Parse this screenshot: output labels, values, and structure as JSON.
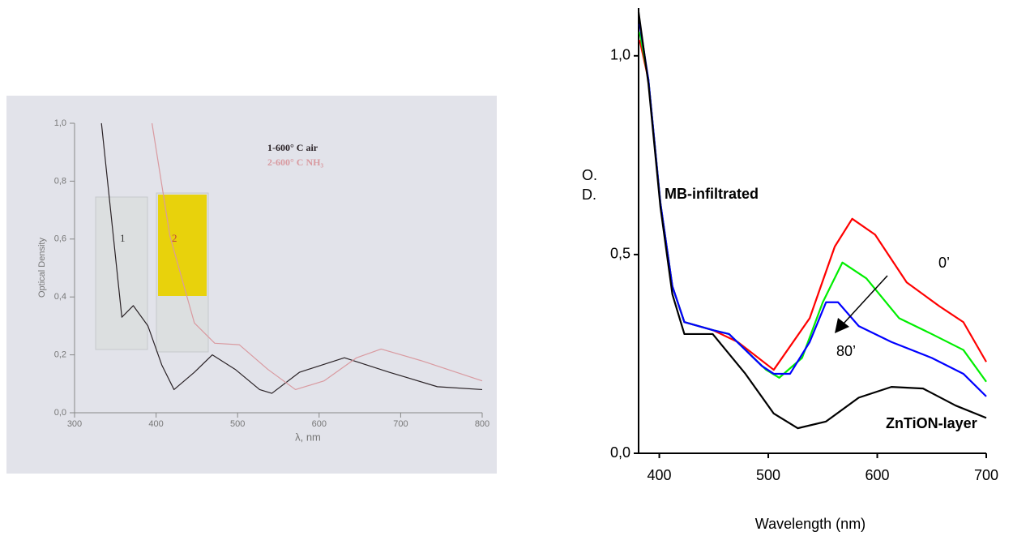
{
  "chart_data": [
    {
      "type": "line",
      "y_label": "Optical Density",
      "x_label": "λ, nm",
      "xlim": [
        300,
        800
      ],
      "xticks": [
        300,
        400,
        500,
        600,
        700,
        800
      ],
      "ylim": [
        0,
        1.0
      ],
      "yticks": [
        {
          "value": 0,
          "label": "0,0"
        },
        {
          "value": 0.2,
          "label": "0,2"
        },
        {
          "value": 0.4,
          "label": "0,4"
        },
        {
          "value": 0.6,
          "label": "0,6"
        },
        {
          "value": 0.8,
          "label": "0,8"
        },
        {
          "value": 1.0,
          "label": "1,0"
        }
      ],
      "legend": "top-right",
      "annotations": [
        "1",
        "2"
      ],
      "series": [
        {
          "name": "1-600° C air",
          "color": "#2a2226",
          "x": [
            333,
            358,
            372,
            390,
            407,
            422,
            447,
            469,
            497,
            527,
            542,
            576,
            631,
            686,
            745,
            800
          ],
          "values": [
            1.0,
            0.33,
            0.37,
            0.3,
            0.165,
            0.08,
            0.14,
            0.2,
            0.15,
            0.08,
            0.067,
            0.14,
            0.19,
            0.14,
            0.09,
            0.08
          ]
        },
        {
          "name": "2-600° C NH₃",
          "color": "#d99aa0",
          "x": [
            395,
            417,
            447,
            472,
            502,
            537,
            571,
            606,
            646,
            676,
            725,
            800
          ],
          "values": [
            1.0,
            0.61,
            0.31,
            0.24,
            0.235,
            0.15,
            0.08,
            0.11,
            0.19,
            0.22,
            0.18,
            0.11
          ]
        }
      ]
    },
    {
      "type": "line",
      "y_label": "O. D.",
      "x_label": "Wavelength (nm)",
      "xlim": [
        381,
        700
      ],
      "xticks": [
        400,
        500,
        600,
        700
      ],
      "ylim": [
        0,
        1.12
      ],
      "yticks": [
        {
          "value": 0,
          "label": "0,0"
        },
        {
          "value": 0.5,
          "label": "0,5"
        },
        {
          "value": 1.0,
          "label": "1,0"
        }
      ],
      "annotations": [
        "MB-infiltrated",
        "0’",
        "80’",
        "ZnTiON-layer"
      ],
      "series": [
        {
          "color": "#ff0000",
          "x": [
            382,
            390,
            401,
            412,
            423,
            449,
            472,
            505,
            538,
            561,
            577,
            598,
            627,
            657,
            679,
            700
          ],
          "values": [
            1.04,
            0.94,
            0.63,
            0.42,
            0.33,
            0.31,
            0.28,
            0.21,
            0.34,
            0.52,
            0.59,
            0.55,
            0.43,
            0.37,
            0.33,
            0.23
          ]
        },
        {
          "color": "#00ee00",
          "x": [
            382,
            390,
            401,
            412,
            423,
            449,
            464,
            498,
            510,
            531,
            550,
            568,
            590,
            620,
            650,
            679,
            700
          ],
          "values": [
            1.06,
            0.94,
            0.63,
            0.42,
            0.33,
            0.31,
            0.3,
            0.21,
            0.19,
            0.24,
            0.38,
            0.48,
            0.44,
            0.34,
            0.3,
            0.26,
            0.18
          ]
        },
        {
          "color": "#0000ff",
          "x": [
            382,
            390,
            401,
            412,
            423,
            449,
            464,
            494,
            505,
            520,
            538,
            553,
            564,
            583,
            613,
            650,
            679,
            700
          ],
          "values": [
            1.08,
            0.94,
            0.63,
            0.42,
            0.33,
            0.31,
            0.3,
            0.22,
            0.2,
            0.2,
            0.28,
            0.38,
            0.38,
            0.32,
            0.28,
            0.24,
            0.2,
            0.143
          ]
        },
        {
          "color": "#000000",
          "x": [
            381,
            390,
            401,
            412,
            423,
            449,
            479,
            505,
            527,
            553,
            583,
            613,
            642,
            672,
            700
          ],
          "values": [
            1.11,
            0.93,
            0.62,
            0.4,
            0.3,
            0.3,
            0.2,
            0.1,
            0.063,
            0.08,
            0.14,
            0.167,
            0.163,
            0.12,
            0.089
          ]
        }
      ]
    }
  ]
}
